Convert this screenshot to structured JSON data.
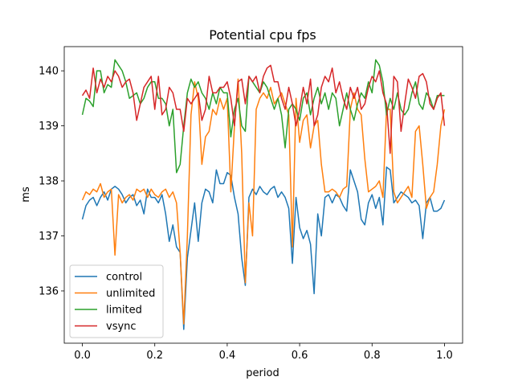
{
  "chart_data": {
    "type": "line",
    "title": "Potential cpu fps",
    "xlabel": "period",
    "ylabel": "ms",
    "x": [
      0,
      0.01,
      0.02,
      0.03,
      0.04,
      0.05,
      0.06,
      0.07,
      0.08,
      0.09,
      0.1,
      0.11,
      0.12,
      0.13,
      0.14,
      0.15,
      0.16,
      0.17,
      0.18,
      0.19,
      0.2,
      0.21,
      0.22,
      0.23,
      0.24,
      0.25,
      0.26,
      0.27,
      0.28,
      0.29,
      0.3,
      0.31,
      0.32,
      0.33,
      0.34,
      0.35,
      0.36,
      0.37,
      0.38,
      0.39,
      0.4,
      0.41,
      0.42,
      0.43,
      0.44,
      0.45,
      0.46,
      0.47,
      0.48,
      0.49,
      0.5,
      0.51,
      0.52,
      0.53,
      0.54,
      0.55,
      0.56,
      0.57,
      0.58,
      0.59,
      0.6,
      0.61,
      0.62,
      0.63,
      0.64,
      0.65,
      0.66,
      0.67,
      0.68,
      0.69,
      0.7,
      0.71,
      0.72,
      0.73,
      0.74,
      0.75,
      0.76,
      0.77,
      0.78,
      0.79,
      0.8,
      0.81,
      0.82,
      0.83,
      0.84,
      0.85,
      0.86,
      0.87,
      0.88,
      0.89,
      0.9,
      0.91,
      0.92,
      0.93,
      0.94,
      0.95,
      0.96,
      0.97,
      0.98,
      0.99,
      1
    ],
    "series": [
      {
        "name": "control",
        "color": "#1f77b4",
        "values": [
          137.3,
          137.55,
          137.65,
          137.7,
          137.55,
          137.7,
          137.8,
          137.65,
          137.85,
          137.9,
          137.85,
          137.75,
          137.6,
          137.7,
          137.75,
          137.55,
          137.65,
          137.4,
          137.85,
          137.7,
          137.7,
          137.6,
          137.75,
          137.4,
          136.9,
          137.2,
          136.8,
          136.7,
          135.3,
          136.6,
          137.1,
          137.6,
          136.9,
          137.6,
          137.85,
          137.8,
          137.6,
          138.2,
          137.95,
          137.95,
          138.15,
          138.1,
          137.7,
          137.4,
          136.6,
          136.1,
          137.7,
          137.85,
          137.75,
          137.9,
          137.8,
          137.75,
          137.85,
          137.9,
          137.7,
          137.8,
          137.7,
          137.5,
          136.5,
          137.7,
          137.15,
          136.95,
          137.1,
          136.85,
          135.95,
          137.4,
          137.0,
          137.7,
          137.75,
          137.6,
          137.75,
          137.7,
          137.55,
          137.45,
          138.2,
          138.0,
          137.8,
          137.3,
          137.2,
          137.6,
          137.75,
          137.5,
          137.7,
          137.2,
          138.25,
          138.2,
          137.6,
          137.7,
          137.8,
          137.75,
          137.7,
          137.6,
          137.65,
          137.55,
          136.95,
          137.6,
          137.7,
          137.45,
          137.45,
          137.5,
          137.65
        ]
      },
      {
        "name": "unlimited",
        "color": "#ff7f0e",
        "values": [
          137.65,
          137.8,
          137.75,
          137.85,
          137.8,
          137.95,
          137.7,
          137.8,
          137.85,
          136.65,
          137.75,
          137.6,
          137.7,
          137.75,
          137.65,
          137.85,
          137.8,
          137.85,
          137.7,
          137.85,
          137.75,
          137.7,
          137.8,
          137.85,
          137.7,
          137.8,
          137.6,
          136.7,
          135.4,
          137.0,
          139.2,
          139.8,
          139.5,
          138.3,
          138.8,
          138.9,
          139.3,
          139.2,
          139.5,
          139.3,
          139.5,
          137.8,
          139.0,
          139.85,
          138.5,
          136.15,
          137.6,
          137.0,
          139.3,
          139.5,
          139.6,
          139.5,
          139.7,
          139.4,
          139.5,
          139.6,
          139.4,
          139.2,
          136.8,
          139.5,
          138.7,
          139.1,
          139.2,
          138.6,
          139.0,
          139.1,
          138.3,
          137.8,
          137.8,
          137.85,
          137.8,
          137.7,
          137.85,
          137.9,
          139.3,
          139.6,
          139.3,
          139.2,
          138.4,
          137.8,
          137.85,
          137.9,
          138.0,
          137.7,
          139.3,
          139.3,
          137.8,
          137.6,
          137.7,
          137.8,
          137.9,
          137.7,
          138.9,
          139.0,
          138.3,
          137.5,
          137.7,
          137.8,
          138.3,
          139.0,
          139.3
        ]
      },
      {
        "name": "limited",
        "color": "#2ca02c",
        "values": [
          139.2,
          139.5,
          139.45,
          139.35,
          140.0,
          140.0,
          139.6,
          139.75,
          139.7,
          140.2,
          140.1,
          140.0,
          139.8,
          139.5,
          139.55,
          139.6,
          139.4,
          139.5,
          139.7,
          139.8,
          139.8,
          139.5,
          139.5,
          139.4,
          139.0,
          139.3,
          138.15,
          138.3,
          139.0,
          139.6,
          139.85,
          139.7,
          139.8,
          139.6,
          139.5,
          139.3,
          139.6,
          139.4,
          139.7,
          139.6,
          139.6,
          138.8,
          139.3,
          139.5,
          139.0,
          138.9,
          139.9,
          139.8,
          139.7,
          139.6,
          139.8,
          139.7,
          139.5,
          139.3,
          139.5,
          139.2,
          138.6,
          139.3,
          139.4,
          139.3,
          139.1,
          139.5,
          139.6,
          139.2,
          139.5,
          139.7,
          139.4,
          139.6,
          139.3,
          139.6,
          139.5,
          139.0,
          139.3,
          139.6,
          139.3,
          139.1,
          139.4,
          139.6,
          139.5,
          139.8,
          139.6,
          140.2,
          140.1,
          139.8,
          139.2,
          139.5,
          139.3,
          139.6,
          139.3,
          139.2,
          139.3,
          139.6,
          139.8,
          139.4,
          139.3,
          139.6,
          139.5,
          139.3,
          139.55,
          139.55,
          139.55
        ]
      },
      {
        "name": "vsync",
        "color": "#d62728",
        "values": [
          139.55,
          139.65,
          139.5,
          140.05,
          139.6,
          139.85,
          139.7,
          139.9,
          139.8,
          140.0,
          139.9,
          139.7,
          139.8,
          139.85,
          139.6,
          139.1,
          139.4,
          139.7,
          139.8,
          139.9,
          139.3,
          139.9,
          139.2,
          139.3,
          139.7,
          139.6,
          139.3,
          139.3,
          138.9,
          139.5,
          139.4,
          139.5,
          139.6,
          139.1,
          139.3,
          139.9,
          139.6,
          139.6,
          139.7,
          139.7,
          139.8,
          139.5,
          139.0,
          139.8,
          139.85,
          139.4,
          139.9,
          139.8,
          139.9,
          139.6,
          139.9,
          140.05,
          140.1,
          139.8,
          139.8,
          139.5,
          139.3,
          139.7,
          139.4,
          139.0,
          139.3,
          139.7,
          139.4,
          139.85,
          139.0,
          139.2,
          139.7,
          139.9,
          139.8,
          140.05,
          139.6,
          139.8,
          139.5,
          139.3,
          139.7,
          139.5,
          139.7,
          139.3,
          139.4,
          139.7,
          139.9,
          139.8,
          140.0,
          139.6,
          139.4,
          138.5,
          139.9,
          139.8,
          138.9,
          139.4,
          139.85,
          139.7,
          139.5,
          139.9,
          139.95,
          139.8,
          139.4,
          139.3,
          139.5,
          139.6,
          139.0
        ]
      }
    ],
    "xlim": [
      -0.05,
      1.05
    ],
    "ylim": [
      135.05,
      140.44
    ],
    "xticks": [
      {
        "value": 0,
        "label": "0.0"
      },
      0.2,
      0.4,
      0.6,
      0.8,
      {
        "value": 1,
        "label": "1.0"
      }
    ],
    "yticks": [
      136,
      137,
      138,
      139,
      140
    ],
    "legend": "lower left"
  }
}
